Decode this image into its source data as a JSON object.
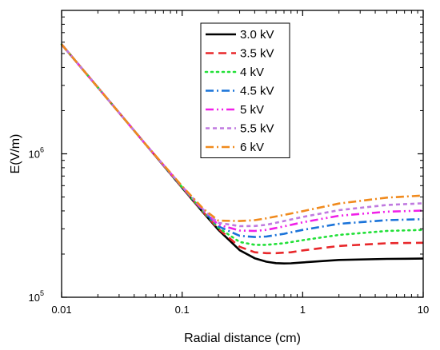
{
  "chart_data": {
    "type": "line",
    "xlabel": "Radial distance (cm)",
    "ylabel": "E(V/m)",
    "xscale": "log",
    "yscale": "log",
    "xlim": [
      0.01,
      10
    ],
    "ylim": [
      100000,
      10000000
    ],
    "x_ticks": [
      {
        "value": 0.01,
        "label": "0.01"
      },
      {
        "value": 0.1,
        "label": "0.1"
      },
      {
        "value": 1,
        "label": "1"
      },
      {
        "value": 10,
        "label": "10"
      }
    ],
    "y_ticks": [
      {
        "value": 100000,
        "base": "10",
        "exp": "5"
      },
      {
        "value": 1000000,
        "base": "10",
        "exp": "6"
      }
    ],
    "legend_position": "top-center",
    "series": [
      {
        "name": "3.0 kV",
        "color": "#000000",
        "dash": "solid",
        "x": [
          0.01,
          0.02,
          0.05,
          0.1,
          0.15,
          0.2,
          0.3,
          0.4,
          0.5,
          0.6,
          0.7,
          0.8,
          1,
          2,
          5,
          10
        ],
        "y": [
          5800000,
          2900000,
          1160000,
          580000,
          388000,
          295000,
          213000,
          187000,
          177000,
          173000,
          172000,
          172500,
          175000,
          182000,
          185000,
          186000
        ]
      },
      {
        "name": "3.5 kV",
        "color": "#e8282b",
        "dash": "dash",
        "x": [
          0.01,
          0.02,
          0.05,
          0.1,
          0.15,
          0.2,
          0.3,
          0.4,
          0.5,
          0.6,
          0.8,
          1,
          2,
          5,
          10
        ],
        "y": [
          5800000,
          2900000,
          1160000,
          582000,
          392000,
          300000,
          225000,
          206000,
          203000,
          203000,
          206000,
          212000,
          228000,
          238000,
          240000
        ]
      },
      {
        "name": "4 kV",
        "color": "#22e038",
        "dash": "dot",
        "x": [
          0.01,
          0.02,
          0.05,
          0.1,
          0.15,
          0.2,
          0.3,
          0.4,
          0.5,
          0.7,
          1,
          2,
          5,
          10
        ],
        "y": [
          5800000,
          2900000,
          1160000,
          585000,
          396000,
          305000,
          243000,
          232000,
          232000,
          238000,
          250000,
          272000,
          290000,
          295000
        ]
      },
      {
        "name": "4.5 kV",
        "color": "#1a73d9",
        "dash": "dashdot",
        "x": [
          0.01,
          0.02,
          0.05,
          0.1,
          0.15,
          0.2,
          0.3,
          0.4,
          0.5,
          0.7,
          1,
          2,
          5,
          10
        ],
        "y": [
          5800000,
          2900000,
          1160000,
          588000,
          400000,
          312000,
          268000,
          263000,
          265000,
          277000,
          295000,
          325000,
          345000,
          350000
        ]
      },
      {
        "name": "5 kV",
        "color": "#f020e8",
        "dash": "dashdotdot",
        "x": [
          0.01,
          0.02,
          0.05,
          0.1,
          0.15,
          0.2,
          0.3,
          0.4,
          0.5,
          0.7,
          1,
          2,
          5,
          10
        ],
        "y": [
          5800000,
          2900000,
          1160000,
          590000,
          404000,
          320000,
          292000,
          290000,
          295000,
          312000,
          333000,
          370000,
          395000,
          402000
        ]
      },
      {
        "name": "5.5 kV",
        "color": "#c07ae0",
        "dash": "shortdash",
        "x": [
          0.01,
          0.02,
          0.05,
          0.1,
          0.15,
          0.2,
          0.3,
          0.4,
          0.5,
          0.7,
          1,
          2,
          5,
          10
        ],
        "y": [
          5800000,
          2900000,
          1160000,
          592000,
          408000,
          330000,
          313000,
          314000,
          320000,
          340000,
          363000,
          405000,
          440000,
          452000
        ]
      },
      {
        "name": "6 kV",
        "color": "#f08a1d",
        "dash": "dashdot",
        "x": [
          0.01,
          0.02,
          0.05,
          0.1,
          0.15,
          0.2,
          0.3,
          0.4,
          0.5,
          0.7,
          1,
          2,
          5,
          10
        ],
        "y": [
          5800000,
          2900000,
          1160000,
          595000,
          413000,
          342000,
          340000,
          345000,
          355000,
          375000,
          398000,
          450000,
          495000,
          512000
        ]
      }
    ]
  }
}
